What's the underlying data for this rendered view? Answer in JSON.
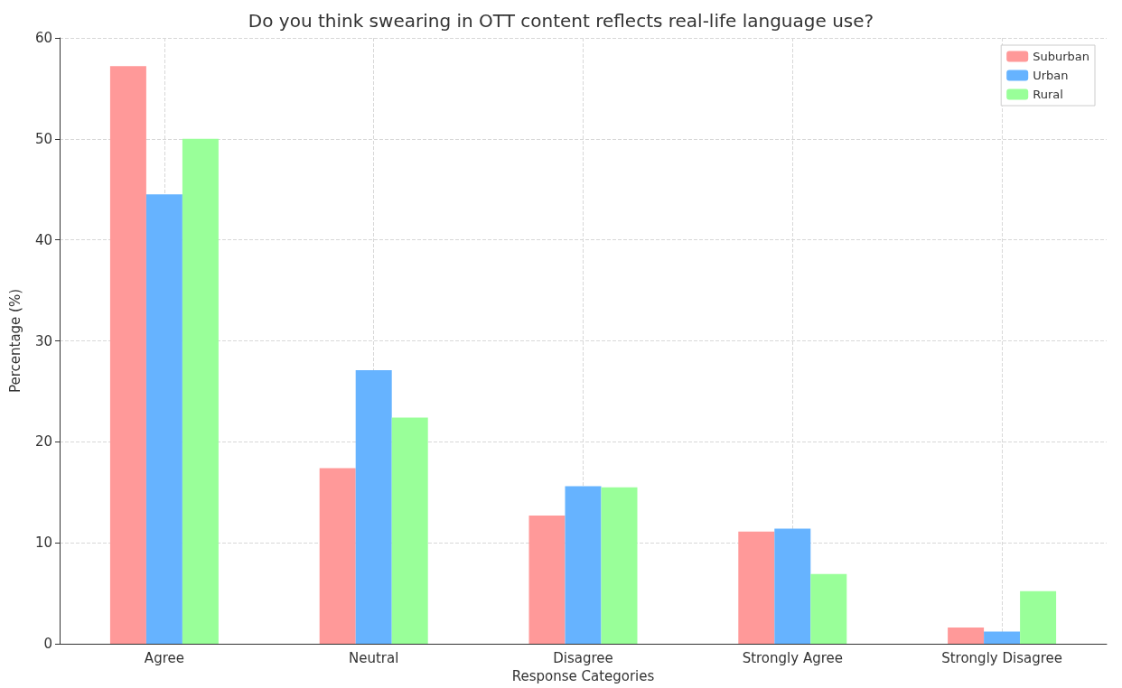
{
  "chart_data": {
    "type": "bar",
    "title": "Do you think swearing in OTT content reflects real-life language use?",
    "xlabel": "Response Categories",
    "ylabel": "Percentage (%)",
    "categories": [
      "Agree",
      "Neutral",
      "Disagree",
      "Strongly Agree",
      "Strongly Disagree"
    ],
    "series": [
      {
        "name": "Suburban",
        "color": "#ff9999",
        "values": [
          57.2,
          17.4,
          12.7,
          11.1,
          1.6
        ]
      },
      {
        "name": "Urban",
        "color": "#66b3ff",
        "values": [
          44.5,
          27.1,
          15.6,
          11.4,
          1.2
        ]
      },
      {
        "name": "Rural",
        "color": "#99ff99",
        "values": [
          50.0,
          22.4,
          15.5,
          6.9,
          5.2
        ]
      }
    ],
    "ylim": [
      0,
      60
    ],
    "yticks": [
      0,
      10,
      20,
      30,
      40,
      50,
      60
    ],
    "grid": true,
    "legend": "top right"
  }
}
